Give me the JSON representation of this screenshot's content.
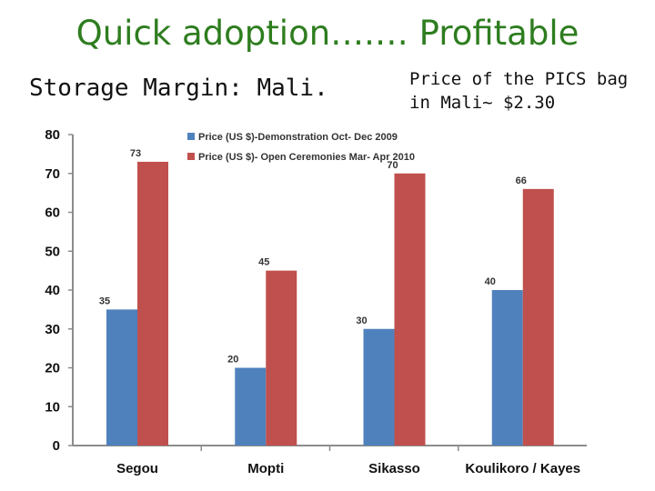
{
  "slide": {
    "title": "Quick adoption….… Profitable",
    "subtitle_left": "Storage Margin: Mali.",
    "subtitle_right": "Price of the PICS bag in Mali~ $2.30"
  },
  "chart_data": {
    "type": "bar",
    "categories": [
      "Segou",
      "Mopti",
      "Sikasso",
      "Koulikoro / Kayes"
    ],
    "series": [
      {
        "name": "Price (US $)-Demonstration Oct- Dec 2009",
        "color": "#4f81bd",
        "values": [
          35,
          20,
          30,
          40
        ]
      },
      {
        "name": "Price (US $)- Open Ceremonies Mar- Apr 2010",
        "color": "#c0504d",
        "values": [
          73,
          45,
          70,
          66
        ]
      }
    ],
    "ylim": [
      0,
      80
    ],
    "yticks": [
      "0",
      "10",
      "20",
      "30",
      "40",
      "50",
      "60",
      "70",
      "80"
    ],
    "legend": "top",
    "grid": false
  }
}
